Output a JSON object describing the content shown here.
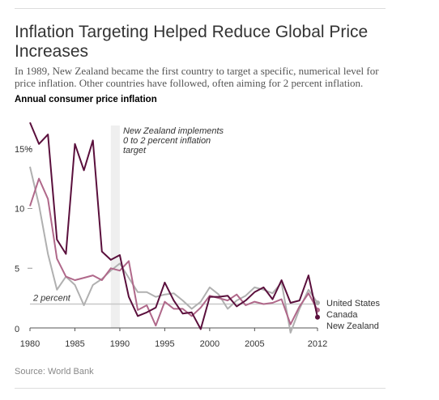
{
  "header": {
    "title": "Inflation Targeting Helped Reduce Global Price Increases",
    "subtitle": "In 1989, New Zealand became the first country to target a specific, numerical level for price inflation. Other countries have followed, often aiming for 2 percent inflation.",
    "chart_label": "Annual consumer price inflation"
  },
  "footer": {
    "source": "Source: World Bank"
  },
  "chart_data": {
    "type": "line",
    "title": "Annual consumer price inflation",
    "xlabel": "",
    "ylabel": "",
    "xlim": [
      1980,
      2012
    ],
    "ylim": [
      0,
      17
    ],
    "x_ticks": [
      1980,
      1985,
      1990,
      1995,
      2000,
      2005,
      2012
    ],
    "x_tick_labels": [
      "1980",
      "1985",
      "1990",
      "1995",
      "2000",
      "2005",
      "2012"
    ],
    "y_ticks": [
      0,
      5,
      10,
      15
    ],
    "y_tick_labels": [
      "0",
      "5",
      "10",
      "15%"
    ],
    "grid": false,
    "legend": "right-end labels",
    "x": [
      1980,
      1981,
      1982,
      1983,
      1984,
      1985,
      1986,
      1987,
      1988,
      1989,
      1990,
      1991,
      1992,
      1993,
      1994,
      1995,
      1996,
      1997,
      1998,
      1999,
      2000,
      2001,
      2002,
      2003,
      2004,
      2005,
      2006,
      2007,
      2008,
      2009,
      2010,
      2011,
      2012
    ],
    "series": [
      {
        "name": "United States",
        "color": "#b0b0b0",
        "values": [
          13.5,
          10.3,
          6.2,
          3.2,
          4.3,
          3.6,
          1.9,
          3.6,
          4.1,
          4.8,
          5.4,
          4.2,
          3.0,
          3.0,
          2.6,
          2.8,
          2.9,
          2.3,
          1.6,
          2.2,
          3.4,
          2.8,
          1.6,
          2.3,
          2.7,
          3.4,
          3.2,
          2.9,
          3.8,
          -0.4,
          1.6,
          3.2,
          2.1
        ]
      },
      {
        "name": "Canada",
        "color": "#b0688a",
        "values": [
          10.2,
          12.5,
          10.8,
          5.8,
          4.3,
          4.0,
          4.2,
          4.4,
          4.0,
          5.0,
          4.8,
          5.6,
          1.5,
          1.9,
          0.2,
          2.2,
          1.6,
          1.6,
          1.0,
          1.7,
          2.7,
          2.5,
          2.3,
          2.8,
          1.9,
          2.2,
          2.0,
          2.1,
          2.4,
          0.3,
          1.8,
          2.9,
          1.5
        ]
      },
      {
        "name": "New Zealand",
        "color": "#5a0f3c",
        "values": [
          17.2,
          15.4,
          16.2,
          7.4,
          6.2,
          15.4,
          13.2,
          15.7,
          6.4,
          5.7,
          6.1,
          2.6,
          1.0,
          1.3,
          1.7,
          3.8,
          2.3,
          1.2,
          1.3,
          -0.1,
          2.6,
          2.6,
          2.7,
          1.8,
          2.3,
          3.0,
          3.4,
          2.4,
          4.0,
          2.1,
          2.3,
          4.4,
          0.9
        ]
      }
    ],
    "reference_line": {
      "value": 2,
      "label": "2 percent"
    },
    "annotation": {
      "x": 1989,
      "lines": [
        "New Zealand implements",
        "0 to 2 percent inflation",
        "target"
      ]
    }
  }
}
